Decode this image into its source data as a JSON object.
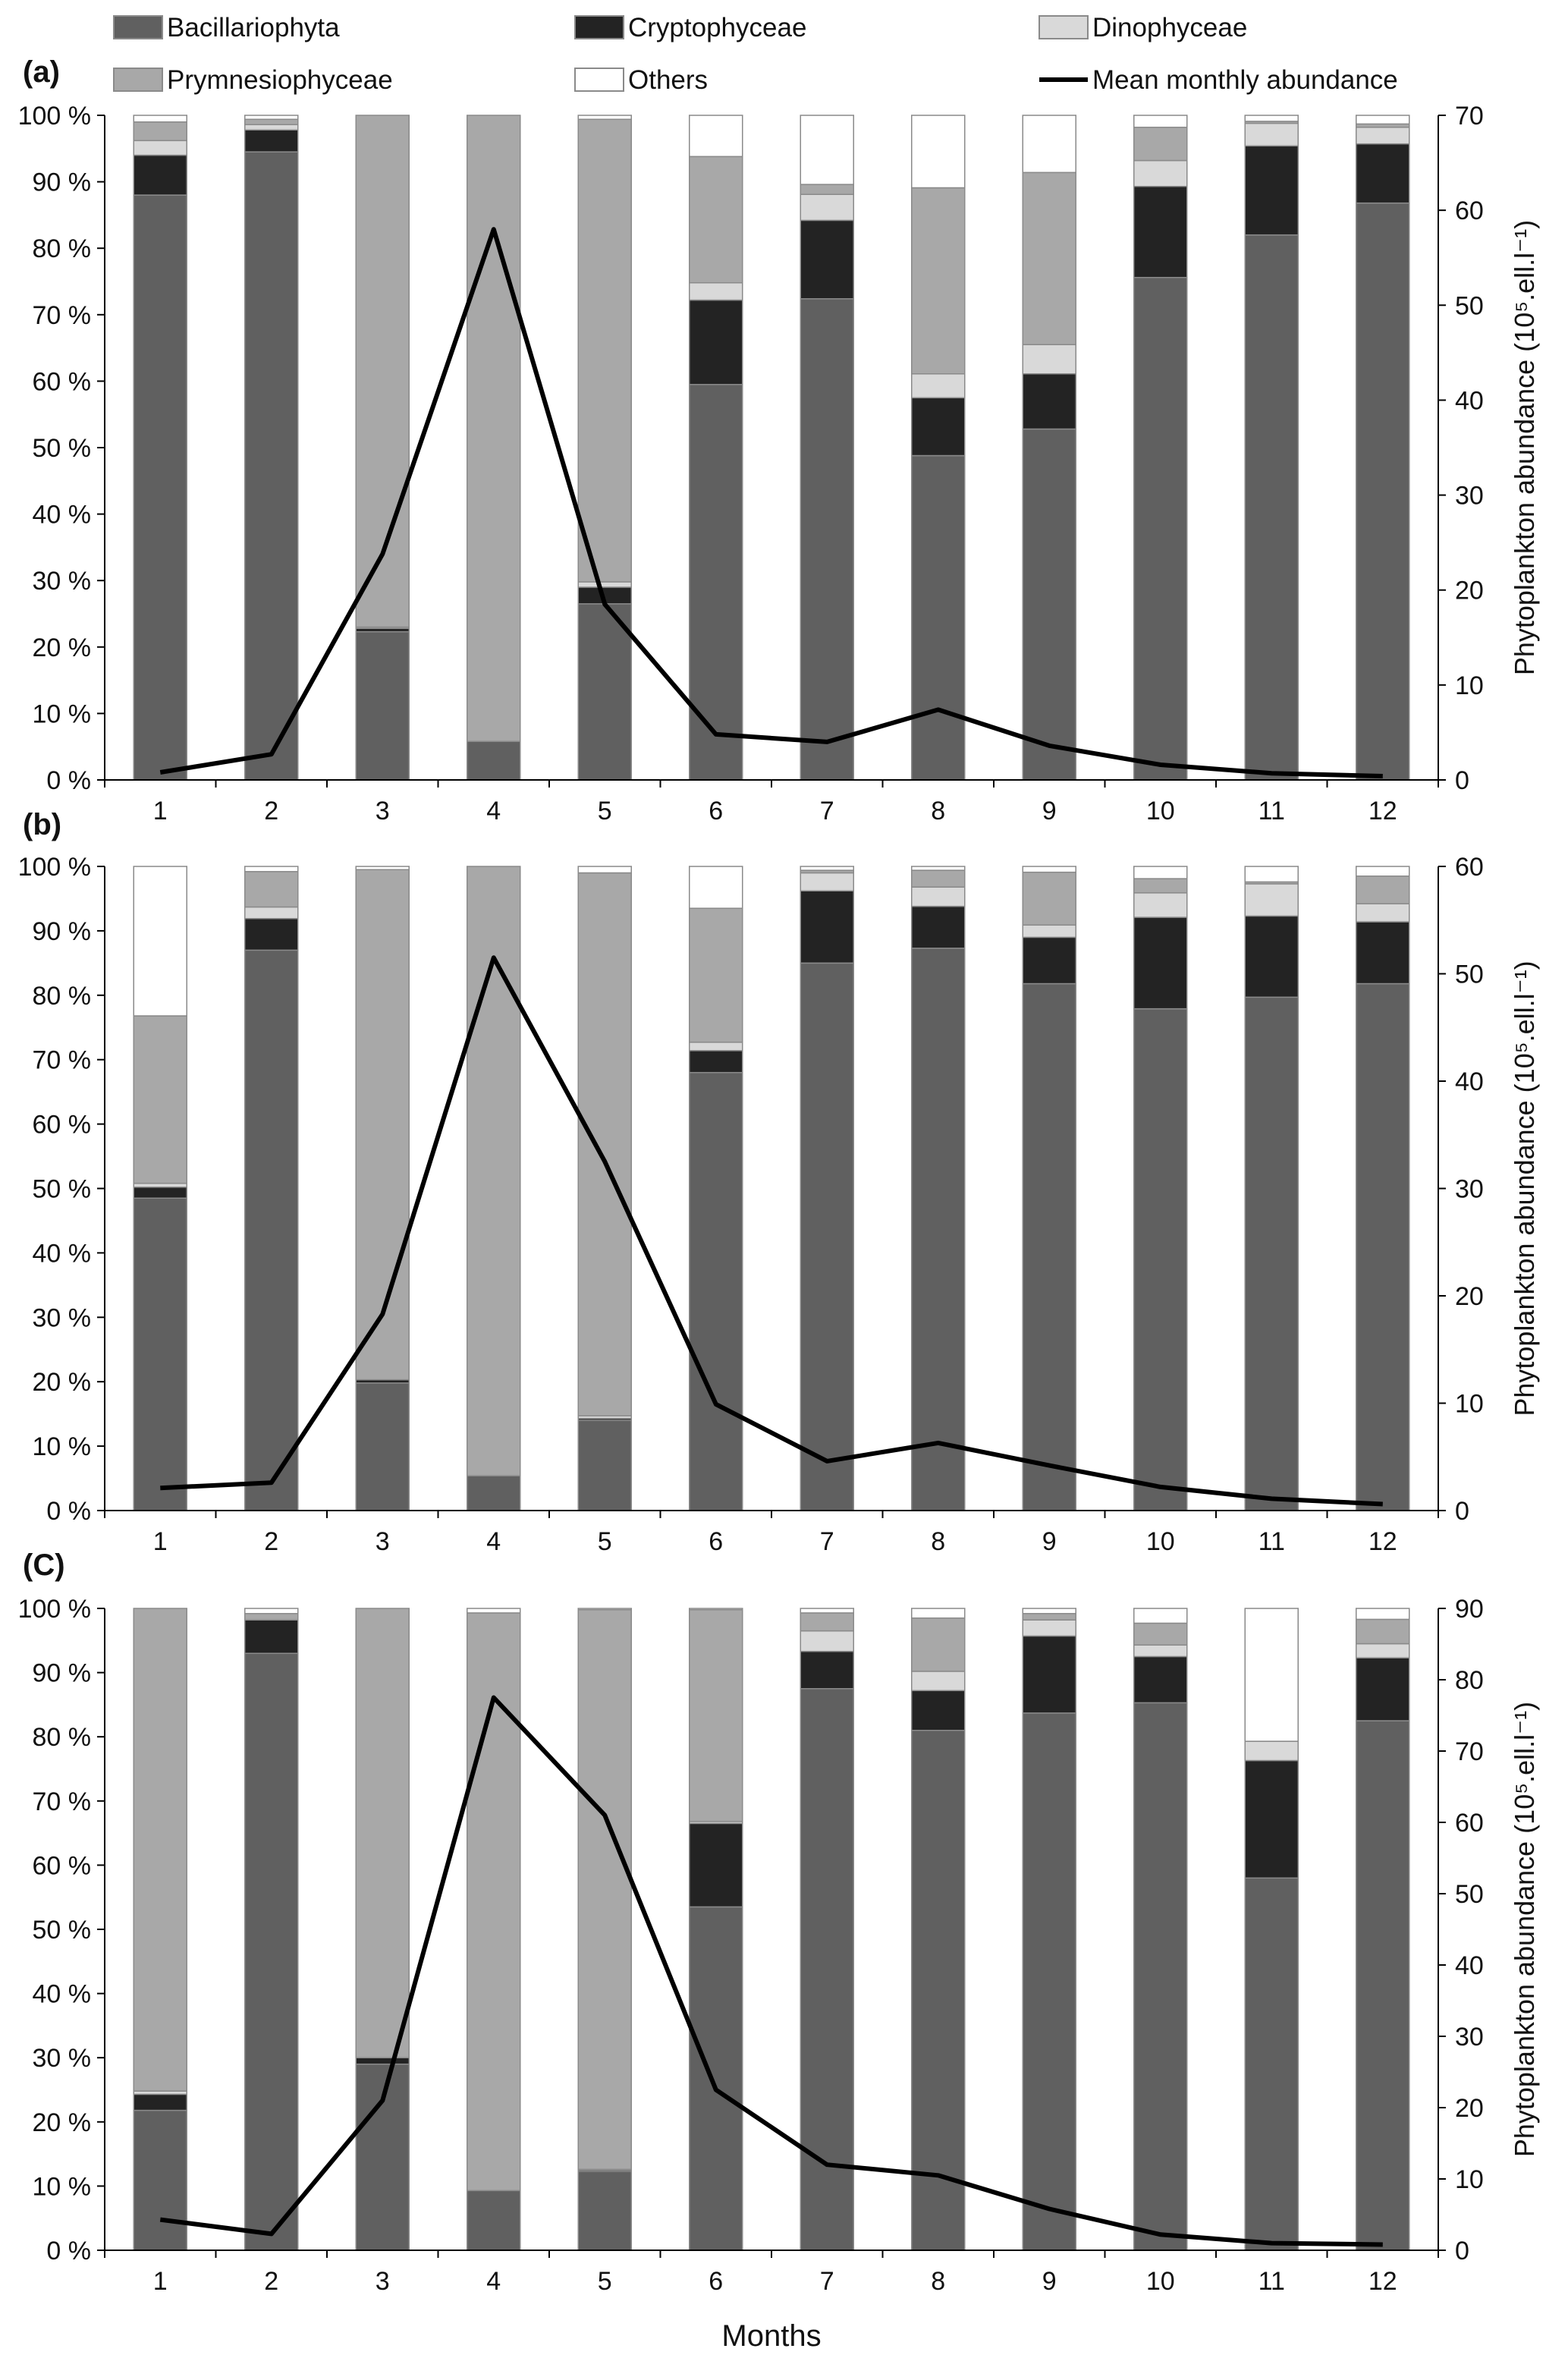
{
  "legend": [
    {
      "name": "Bacillariophyta",
      "color": "#606060"
    },
    {
      "name": "Cryptophyceae",
      "color": "#232323"
    },
    {
      "name": "Dinophyceae",
      "color": "#d9d9d9"
    },
    {
      "name": "Prymnesiophyceae",
      "color": "#a8a8a8"
    },
    {
      "name": "Others",
      "color": "#ffffff"
    },
    {
      "name": "Mean monthly abundance",
      "color": "#000000"
    }
  ],
  "chart_data": [
    {
      "type": "bar",
      "stacked": true,
      "panel_label": "(a)",
      "categories": [
        "1",
        "2",
        "3",
        "4",
        "5",
        "6",
        "7",
        "8",
        "9",
        "10",
        "11",
        "12"
      ],
      "y_left": {
        "ticks": [
          "0 %",
          "10 %",
          "20 %",
          "30 %",
          "40 %",
          "50 %",
          "60 %",
          "70 %",
          "80 %",
          "90 %",
          "100 %"
        ],
        "range": [
          0,
          100
        ]
      },
      "y_right": {
        "label": "Phytoplankton abundance (10⁵.ell.l⁻¹)",
        "ticks": [
          "0",
          "10",
          "20",
          "30",
          "40",
          "50",
          "60",
          "70"
        ],
        "range": [
          0,
          70
        ]
      },
      "series": [
        {
          "name": "Bacillariophyta",
          "values": [
            88,
            94.5,
            22.3,
            5.8,
            26.5,
            59.5,
            72.4,
            48.8,
            52.8,
            75.6,
            82,
            86.8
          ]
        },
        {
          "name": "Cryptophyceae",
          "values": [
            6,
            3.3,
            0.5,
            0,
            2.5,
            12.7,
            11.8,
            8.7,
            8.3,
            13.7,
            13.4,
            8.9
          ]
        },
        {
          "name": "Dinophyceae",
          "values": [
            2.2,
            0.8,
            0.2,
            0,
            0.8,
            2.6,
            3.9,
            3.6,
            4.4,
            3.9,
            3.4,
            2.5
          ]
        },
        {
          "name": "Prymnesiophyceae",
          "values": [
            2.8,
            0.8,
            77,
            94.2,
            69.6,
            19,
            1.5,
            28,
            25.9,
            5,
            0.3,
            0.5
          ]
        },
        {
          "name": "Others",
          "values": [
            1,
            0.6,
            0,
            0,
            0.6,
            6.2,
            10.4,
            10.9,
            8.6,
            1.8,
            0.9,
            1.3
          ]
        }
      ],
      "line": {
        "name": "Mean monthly abundance",
        "values": [
          0.8,
          2.7,
          23.8,
          58,
          18.5,
          4.8,
          4,
          7.4,
          3.6,
          1.6,
          0.7,
          0.4
        ]
      }
    },
    {
      "type": "bar",
      "stacked": true,
      "panel_label": "(b)",
      "categories": [
        "1",
        "2",
        "3",
        "4",
        "5",
        "6",
        "7",
        "8",
        "9",
        "10",
        "11",
        "12"
      ],
      "y_left": {
        "ticks": [
          "0 %",
          "10 %",
          "20 %",
          "30 %",
          "40 %",
          "50 %",
          "60 %",
          "70 %",
          "80 %",
          "90 %",
          "100 %"
        ],
        "range": [
          0,
          100
        ]
      },
      "y_right": {
        "label": "Phytoplankton abundance (10⁵.ell.l⁻¹)",
        "ticks": [
          "0",
          "10",
          "20",
          "30",
          "40",
          "50",
          "60"
        ],
        "range": [
          0,
          60
        ]
      },
      "series": [
        {
          "name": "Bacillariophyta",
          "values": [
            48.5,
            87,
            19.8,
            5.4,
            14,
            68,
            85,
            87.3,
            81.8,
            77.9,
            79.7,
            81.8
          ]
        },
        {
          "name": "Cryptophyceae",
          "values": [
            1.7,
            4.9,
            0.5,
            0,
            0.3,
            3.4,
            11.2,
            6.5,
            7.2,
            14.2,
            12.6,
            9.6
          ]
        },
        {
          "name": "Dinophyceae",
          "values": [
            0.6,
            1.8,
            0,
            0,
            0.4,
            1.3,
            2.8,
            3,
            1.9,
            3.8,
            5,
            2.8
          ]
        },
        {
          "name": "Prymnesiophyceae",
          "values": [
            26,
            5.5,
            79.2,
            94.6,
            84.3,
            20.8,
            0.4,
            2.6,
            8.2,
            2.2,
            0.3,
            4.3
          ]
        },
        {
          "name": "Others",
          "values": [
            23.2,
            0.8,
            0.5,
            0,
            1,
            6.5,
            0.6,
            0.6,
            0.9,
            1.9,
            2.4,
            1.5
          ]
        }
      ],
      "line": {
        "name": "Mean monthly abundance",
        "values": [
          2.1,
          2.6,
          18.3,
          51.5,
          32.5,
          9.9,
          4.6,
          6.3,
          4.2,
          2.2,
          1.1,
          0.6
        ]
      }
    },
    {
      "type": "bar",
      "stacked": true,
      "panel_label": "(C)",
      "categories": [
        "1",
        "2",
        "3",
        "4",
        "5",
        "6",
        "7",
        "8",
        "9",
        "10",
        "11",
        "12"
      ],
      "y_left": {
        "ticks": [
          "0 %",
          "10 %",
          "20 %",
          "30 %",
          "40 %",
          "50 %",
          "60 %",
          "70 %",
          "80 %",
          "90 %",
          "100 %"
        ],
        "range": [
          0,
          100
        ]
      },
      "y_right": {
        "label": "Phytoplankton abundance (10⁵.ell.l⁻¹)",
        "ticks": [
          "0",
          "10",
          "20",
          "30",
          "40",
          "50",
          "60",
          "70",
          "80",
          "90"
        ],
        "range": [
          0,
          90
        ]
      },
      "xlabel": "Months",
      "series": [
        {
          "name": "Bacillariophyta",
          "values": [
            21.8,
            93,
            29,
            9.3,
            12.3,
            53.5,
            87.5,
            81,
            83.7,
            85.3,
            58,
            82.5
          ]
        },
        {
          "name": "Cryptophyceae",
          "values": [
            2.5,
            5.2,
            1,
            0,
            0.2,
            13,
            5.8,
            6.2,
            12,
            7.2,
            18.3,
            9.8
          ]
        },
        {
          "name": "Dinophyceae",
          "values": [
            0.5,
            0,
            0,
            0,
            0.1,
            0.3,
            3.2,
            3,
            2.5,
            1.8,
            3,
            2.2
          ]
        },
        {
          "name": "Prymnesiophyceae",
          "values": [
            75.2,
            1,
            70,
            90,
            87.2,
            33,
            2.8,
            8.3,
            1,
            3.4,
            0,
            3.8
          ]
        },
        {
          "name": "Others",
          "values": [
            0,
            0.8,
            0,
            0.7,
            0.2,
            0.2,
            0.7,
            1.5,
            0.8,
            2.3,
            20.7,
            1.7
          ]
        }
      ],
      "line": {
        "name": "Mean monthly abundance",
        "values": [
          4.3,
          2.3,
          21,
          77.5,
          61,
          22.5,
          12,
          10.5,
          5.8,
          2.2,
          1,
          0.8
        ]
      }
    }
  ]
}
